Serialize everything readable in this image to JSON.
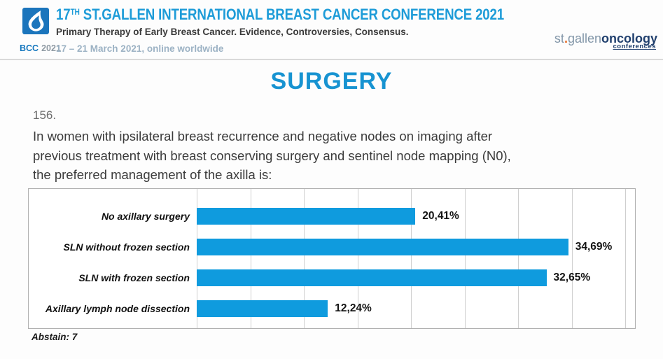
{
  "header": {
    "logo": {
      "bcc": "BCC",
      "year": "2021"
    },
    "title_number": "17",
    "title_sup": "TH",
    "title_rest": " ST.GALLEN INTERNATIONAL BREAST CANCER CONFERENCE 2021",
    "subtitle": "Primary Therapy of Early Breast Cancer. Evidence, Controversies, Consensus.",
    "dates": "17 – 21 March 2021, online worldwide",
    "brand": {
      "st": "st",
      "dot": ".",
      "gallen": "gallen",
      "oncology": "oncology",
      "conferences": "conferences"
    }
  },
  "page_title": "SURGERY",
  "question": {
    "number": "156.",
    "lines": [
      "In women with ipsilateral breast recurrence and negative nodes on imaging after",
      "previous treatment with breast conserving surgery and sentinel node mapping (N0),",
      "the preferred management of the axilla is:"
    ]
  },
  "chart_data": {
    "type": "bar",
    "orientation": "horizontal",
    "title": "",
    "categories": [
      "No axillary surgery",
      "SLN without frozen section",
      "SLN with frozen section",
      "Axillary lymph node dissection"
    ],
    "values": [
      20.41,
      34.69,
      32.65,
      12.24
    ],
    "value_labels": [
      "20,41%",
      "34,69%",
      "32,65%",
      "12,24%"
    ],
    "xlabel": "",
    "ylabel": "",
    "xlim": [
      0,
      40
    ],
    "grid_step": 5,
    "grid": true,
    "legend": false,
    "bar_color": "#0F9BDE"
  },
  "abstain_note": "Abstain: 7",
  "colors": {
    "bar_blue": "#0F9BDE",
    "header_blue": "#1E9CD8",
    "title_blue": "#1793D1",
    "logo_blue": "#1B75BC",
    "brand_navy": "#21406E",
    "brand_orange": "#E86C24",
    "dates_gray_blue": "#9CB2C4"
  }
}
